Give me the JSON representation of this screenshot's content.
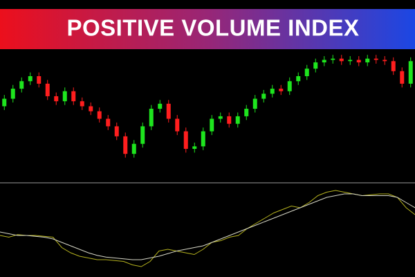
{
  "chart_data": [
    {
      "type": "candlestick",
      "title": "POSITIVE VOLUME INDEX",
      "up_color": "#1ee51e",
      "down_color": "#ff1e1e",
      "ylim": [
        0,
        105
      ],
      "open": [
        60,
        66,
        74,
        80,
        84,
        78,
        68,
        64,
        72,
        64,
        60,
        56,
        50,
        44,
        36,
        22,
        30,
        44,
        58,
        62,
        50,
        40,
        26,
        28,
        40,
        50,
        52,
        46,
        52,
        58,
        66,
        70,
        74,
        72,
        80,
        84,
        90,
        95,
        97,
        98,
        96,
        97,
        95,
        98,
        97,
        96,
        88,
        78
      ],
      "close": [
        66,
        74,
        80,
        84,
        78,
        68,
        64,
        72,
        64,
        60,
        56,
        50,
        44,
        36,
        22,
        30,
        44,
        58,
        62,
        50,
        40,
        26,
        28,
        40,
        50,
        52,
        46,
        52,
        58,
        66,
        70,
        74,
        72,
        80,
        84,
        90,
        95,
        97,
        98,
        96,
        97,
        95,
        98,
        97,
        96,
        88,
        78,
        96
      ],
      "high": [
        69,
        77,
        83,
        87,
        87,
        81,
        71,
        75,
        75,
        67,
        63,
        59,
        53,
        47,
        39,
        33,
        47,
        61,
        65,
        65,
        53,
        43,
        31,
        43,
        53,
        55,
        55,
        55,
        61,
        69,
        73,
        77,
        77,
        83,
        87,
        93,
        98,
        100,
        101,
        101,
        100,
        100,
        101,
        101,
        100,
        99,
        91,
        99
      ],
      "low": [
        57,
        63,
        71,
        77,
        75,
        65,
        61,
        61,
        61,
        57,
        53,
        47,
        41,
        33,
        19,
        19,
        27,
        41,
        55,
        47,
        37,
        23,
        23,
        25,
        37,
        47,
        43,
        43,
        49,
        55,
        63,
        67,
        69,
        69,
        77,
        81,
        87,
        92,
        94,
        93,
        93,
        92,
        92,
        94,
        93,
        85,
        75,
        75
      ]
    },
    {
      "type": "line",
      "ylim": [
        0,
        100
      ],
      "series": [
        {
          "color": "#b5b21e",
          "values": [
            44,
            42,
            45,
            44,
            44,
            43,
            42,
            30,
            24,
            20,
            18,
            16,
            16,
            15,
            14,
            10,
            8,
            14,
            26,
            28,
            26,
            24,
            22,
            28,
            36,
            38,
            42,
            44,
            52,
            58,
            64,
            70,
            74,
            78,
            76,
            82,
            90,
            94,
            96,
            94,
            92,
            90,
            91,
            92,
            92,
            88,
            76,
            68
          ]
        },
        {
          "color": "#d8d8c8",
          "values": [
            48,
            46,
            44,
            44,
            43,
            42,
            40,
            36,
            32,
            28,
            24,
            21,
            19,
            18,
            17,
            16,
            16,
            18,
            20,
            23,
            26,
            28,
            30,
            32,
            36,
            40,
            44,
            48,
            52,
            56,
            60,
            64,
            68,
            72,
            76,
            80,
            84,
            88,
            90,
            92,
            92,
            90,
            90,
            90,
            90,
            88,
            82,
            76
          ]
        }
      ]
    }
  ]
}
